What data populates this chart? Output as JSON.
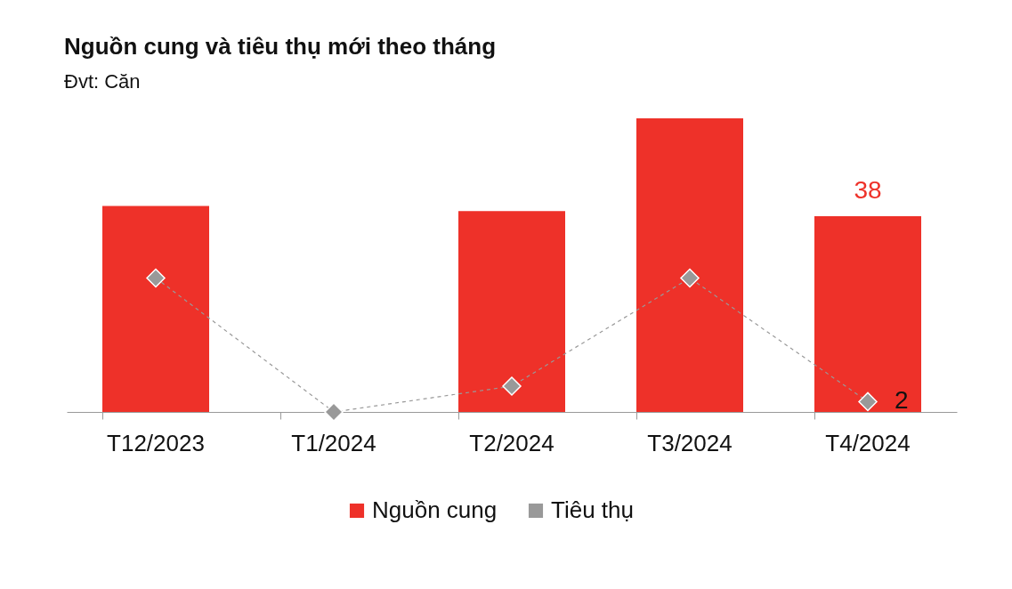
{
  "chart_data": {
    "type": "bar",
    "title": "Nguồn cung và tiêu thụ mới theo tháng",
    "subtitle": "Đvt: Căn",
    "categories": [
      "T12/2023",
      "T1/2024",
      "T2/2024",
      "T3/2024",
      "T4/2024"
    ],
    "series": [
      {
        "name": "Nguồn cung",
        "color": "#ee3129",
        "values": [
          40,
          0,
          39,
          57,
          38
        ],
        "value_labels": [
          null,
          null,
          null,
          null,
          "38"
        ]
      },
      {
        "name": "Tiêu thụ",
        "type": "line",
        "color": "#999999",
        "values": [
          26,
          0,
          5,
          26,
          2
        ],
        "value_labels": [
          null,
          null,
          null,
          null,
          "2"
        ]
      }
    ],
    "marker": "diamond",
    "line_style": "dashed",
    "legend": "bottom",
    "grid": false,
    "tick_labels": "x"
  }
}
